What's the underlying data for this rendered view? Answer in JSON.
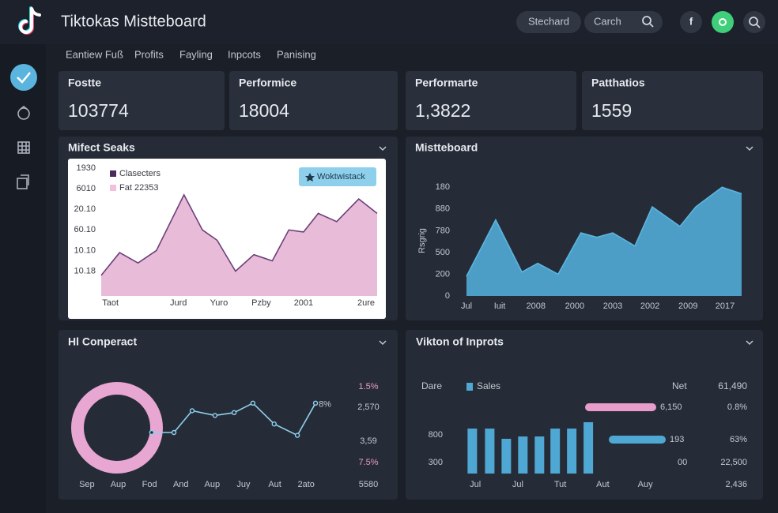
{
  "header": {
    "title": "Tiktokas Mistteboard",
    "button": "Stechard",
    "search": "Carch",
    "social": "f"
  },
  "nav": [
    "Eantiew Fuß",
    "Profits",
    "Fayling",
    "Inpcots",
    "Panising"
  ],
  "cards": [
    {
      "label": "Fostte",
      "value": "103774"
    },
    {
      "label": "Performice",
      "value": "18004"
    },
    {
      "label": "Performarte",
      "value": "1,3822"
    },
    {
      "label": "Patthatios",
      "value": "1559"
    }
  ],
  "panels": [
    {
      "title": "Mifect Seaks",
      "chart": {
        "type": "area",
        "button": "Woktwistack",
        "legend": [
          {
            "name": "Clasecters",
            "color": "#4b2a5c"
          },
          {
            "name": "Fat 22353",
            "color": "#f0c0dc"
          }
        ],
        "line_color": "#6b3f78",
        "color": "#e6b6d6",
        "x": [
          0,
          1,
          2,
          3,
          4.5,
          5.5,
          6.3,
          7.3,
          8.3,
          9.3,
          10.2,
          11,
          11.8,
          12.8,
          14,
          15
        ],
        "values": [
          0.8,
          1.9,
          1.4,
          2.0,
          4.7,
          3.0,
          2.5,
          1.0,
          1.8,
          1.5,
          3.0,
          2.9,
          3.8,
          3.4,
          4.5,
          3.8
        ],
        "xlim": [
          0,
          15
        ],
        "ylim": [
          -0.2,
          6.3
        ],
        "yticks": [
          {
            "value": 6,
            "label": "1930"
          },
          {
            "value": 5,
            "label": "6010"
          },
          {
            "value": 4,
            "label": "20.10"
          },
          {
            "value": 3,
            "label": "60.10"
          },
          {
            "value": 2,
            "label": "10.10"
          },
          {
            "value": 1,
            "label": "10.18"
          }
        ],
        "xticks": [
          {
            "value": 0.5,
            "label": "Taot"
          },
          {
            "value": 4.2,
            "label": "Jurd"
          },
          {
            "value": 6.4,
            "label": "Yuro"
          },
          {
            "value": 8.7,
            "label": "Pzby"
          },
          {
            "value": 11,
            "label": "2001"
          },
          {
            "value": 14.4,
            "label": "2ure"
          }
        ]
      }
    },
    {
      "title": "Mistteboard",
      "chart": {
        "type": "area",
        "y_label": "Rsgrig",
        "color": "#4fa8d4",
        "line_color": "#5cb6e0",
        "x": [
          0,
          0.79,
          1.5,
          1.93,
          2.48,
          3.1,
          3.53,
          3.96,
          4.56,
          5.03,
          5.78,
          6.21,
          6.92,
          7.45
        ],
        "values": [
          0.9,
          3.5,
          1.1,
          1.5,
          1.0,
          2.9,
          2.7,
          2.9,
          2.3,
          4.1,
          3.2,
          4.1,
          5.0,
          4.7
        ],
        "xlim": [
          0,
          7.45
        ],
        "ylim": [
          0,
          5.3
        ],
        "yticks": [
          {
            "value": 5,
            "label": "180"
          },
          {
            "value": 4,
            "label": "880"
          },
          {
            "value": 3,
            "label": "780"
          },
          {
            "value": 2,
            "label": "500"
          },
          {
            "value": 1,
            "label": "200"
          },
          0
        ],
        "xticks": [
          {
            "value": 0,
            "label": "Jul"
          },
          {
            "value": 0.9,
            "label": "Iuit"
          },
          {
            "value": 1.88,
            "label": "2008"
          },
          {
            "value": 2.93,
            "label": "2000"
          },
          {
            "value": 3.96,
            "label": "2003"
          },
          {
            "value": 4.97,
            "label": "2002"
          },
          {
            "value": 6.0,
            "label": "2009"
          },
          {
            "value": 7.0,
            "label": "2017"
          }
        ]
      }
    },
    {
      "title": "Hl Conperact",
      "chart": {
        "type": "line",
        "color": "#8fd0ef",
        "annotation": "8%",
        "x": [
          2.07,
          2.78,
          3.36,
          4.09,
          4.7,
          5.3,
          5.98,
          6.72,
          7.3
        ],
        "values": [
          3.5,
          3.5,
          5.8,
          5.3,
          5.6,
          6.6,
          4.4,
          3.2,
          6.6
        ],
        "xlim": [
          -0.3,
          7.5
        ],
        "ylim": [
          0,
          10
        ],
        "xticks": [
          {
            "value": 0,
            "label": "Sep"
          },
          {
            "value": 1,
            "label": "Aup"
          },
          {
            "value": 2,
            "label": "Fod"
          },
          {
            "value": 3,
            "label": "And"
          },
          {
            "value": 4,
            "label": "Aup"
          },
          {
            "value": 5,
            "label": "Juy"
          },
          {
            "value": 6,
            "label": "Aut"
          },
          {
            "value": 7,
            "label": "2ato"
          }
        ],
        "side_labels": [
          "1.5%",
          "2,570",
          "3,59",
          "7.5%",
          "5580"
        ]
      }
    },
    {
      "title": "Vikton of Inprots",
      "chart": {
        "type": "bar",
        "color": "#4fa8d4",
        "head": {
          "left": "Dare",
          "legend": "Sales",
          "mid": "Net",
          "right": "61,490"
        },
        "x": [
          -0.07,
          0.34,
          0.73,
          1.12,
          1.51,
          1.88,
          2.27,
          2.66
        ],
        "values": [
          914,
          914,
          729,
          771,
          771,
          914,
          914,
          1029
        ],
        "xlim": [
          -0.3,
          4.5
        ],
        "ylim": [
          100,
          1100
        ],
        "yticks": [
          800,
          300
        ],
        "xticks": [
          {
            "value": 0,
            "label": "Jul"
          },
          {
            "value": 1,
            "label": "Jul"
          },
          {
            "value": 2,
            "label": "Tut"
          },
          {
            "value": 3,
            "label": "Aut"
          },
          {
            "value": 4,
            "label": "Auy"
          }
        ],
        "rows": [
          {
            "label": "6,150",
            "color": "#e79ccc",
            "right": "0.8%"
          },
          {
            "label": "193",
            "color": "#4fa8d4",
            "right": "63%"
          },
          {
            "label": "00",
            "right": "22,500"
          }
        ],
        "footer": "2,436"
      }
    }
  ]
}
